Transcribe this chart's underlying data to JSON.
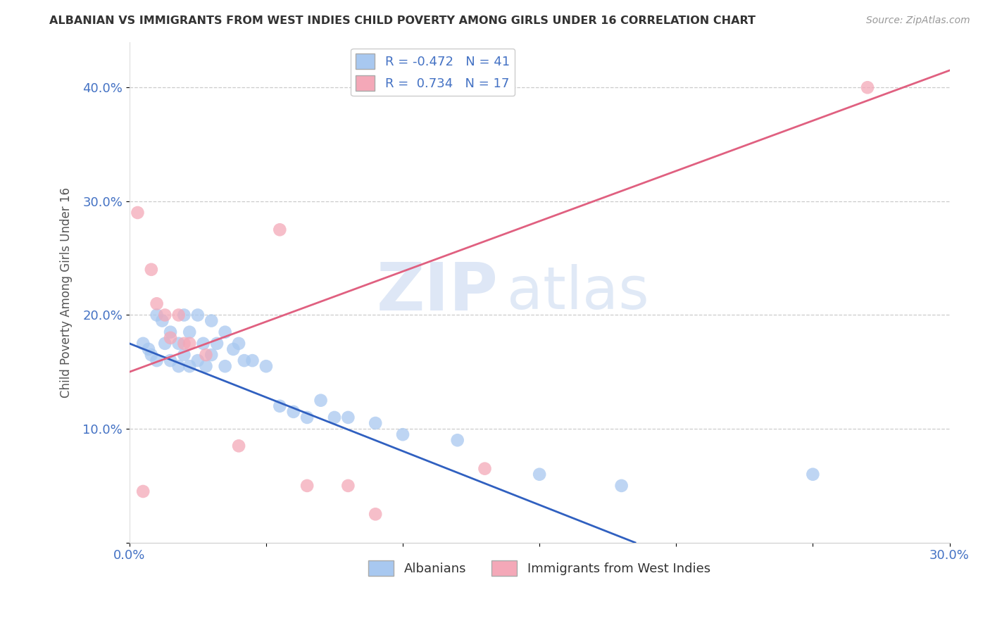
{
  "title": "ALBANIAN VS IMMIGRANTS FROM WEST INDIES CHILD POVERTY AMONG GIRLS UNDER 16 CORRELATION CHART",
  "source": "Source: ZipAtlas.com",
  "ylabel": "Child Poverty Among Girls Under 16",
  "xlabel": "",
  "legend_label1": "Albanians",
  "legend_label2": "Immigrants from West Indies",
  "r1": -0.472,
  "n1": 41,
  "r2": 0.734,
  "n2": 17,
  "color_blue": "#A8C8F0",
  "color_pink": "#F4A8B8",
  "color_blue_line": "#3060C0",
  "color_pink_line": "#E06080",
  "watermark_zip": "ZIP",
  "watermark_atlas": "atlas",
  "xlim": [
    0.0,
    0.3
  ],
  "ylim": [
    0.0,
    0.44
  ],
  "xticks": [
    0.0,
    0.05,
    0.1,
    0.15,
    0.2,
    0.25,
    0.3
  ],
  "xtick_labels": [
    "0.0%",
    "",
    "",
    "",
    "",
    "",
    "30.0%"
  ],
  "yticks": [
    0.0,
    0.1,
    0.2,
    0.3,
    0.4
  ],
  "ytick_labels": [
    "",
    "10.0%",
    "20.0%",
    "30.0%",
    "40.0%"
  ],
  "blue_scatter_x": [
    0.005,
    0.007,
    0.008,
    0.01,
    0.01,
    0.012,
    0.013,
    0.015,
    0.015,
    0.018,
    0.018,
    0.02,
    0.02,
    0.022,
    0.022,
    0.025,
    0.025,
    0.027,
    0.028,
    0.03,
    0.03,
    0.032,
    0.035,
    0.035,
    0.038,
    0.04,
    0.042,
    0.045,
    0.05,
    0.055,
    0.06,
    0.065,
    0.07,
    0.075,
    0.08,
    0.09,
    0.1,
    0.12,
    0.15,
    0.18,
    0.25
  ],
  "blue_scatter_y": [
    0.175,
    0.17,
    0.165,
    0.2,
    0.16,
    0.195,
    0.175,
    0.185,
    0.16,
    0.175,
    0.155,
    0.2,
    0.165,
    0.185,
    0.155,
    0.2,
    0.16,
    0.175,
    0.155,
    0.195,
    0.165,
    0.175,
    0.185,
    0.155,
    0.17,
    0.175,
    0.16,
    0.16,
    0.155,
    0.12,
    0.115,
    0.11,
    0.125,
    0.11,
    0.11,
    0.105,
    0.095,
    0.09,
    0.06,
    0.05,
    0.06
  ],
  "pink_scatter_x": [
    0.003,
    0.005,
    0.008,
    0.01,
    0.013,
    0.015,
    0.018,
    0.02,
    0.022,
    0.028,
    0.04,
    0.055,
    0.065,
    0.08,
    0.09,
    0.13,
    0.27
  ],
  "pink_scatter_y": [
    0.29,
    0.045,
    0.24,
    0.21,
    0.2,
    0.18,
    0.2,
    0.175,
    0.175,
    0.165,
    0.085,
    0.275,
    0.05,
    0.05,
    0.025,
    0.065,
    0.4
  ],
  "blue_line_x": [
    0.0,
    0.185
  ],
  "blue_line_y": [
    0.175,
    0.0
  ],
  "pink_line_x": [
    0.0,
    0.3
  ],
  "pink_line_y": [
    0.15,
    0.415
  ]
}
